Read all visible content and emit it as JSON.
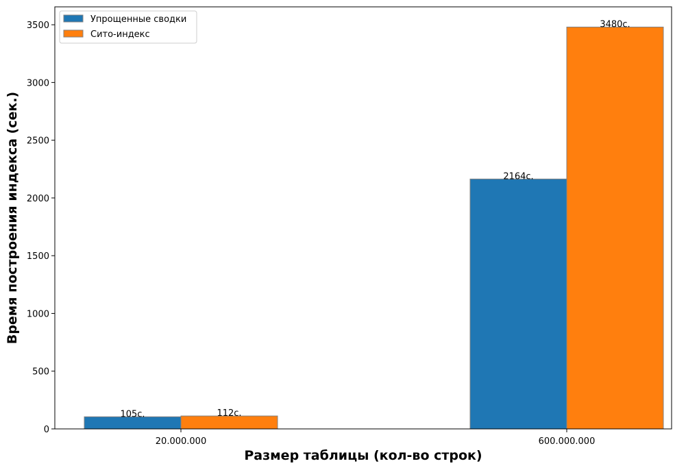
{
  "chart_data": {
    "type": "bar",
    "categories": [
      "20.000.000",
      "600.000.000"
    ],
    "series": [
      {
        "name": "Упрощенные сводки",
        "values": [
          105,
          2164
        ],
        "labels": [
          "105с.",
          "2164с."
        ],
        "color": "#1f77b4"
      },
      {
        "name": "Сито-индекс",
        "values": [
          112,
          3480
        ],
        "labels": [
          "112с.",
          "3480с."
        ],
        "color": "#ff7f0e"
      }
    ],
    "xlabel": "Размер таблицы (кол-во строк)",
    "ylabel": "Время построения индекса (сек.)",
    "ylim": [
      0,
      3655
    ],
    "yticks": [
      0,
      500,
      1000,
      1500,
      2000,
      2500,
      3000,
      3500
    ],
    "grid": false,
    "legend_position": "top-left"
  }
}
